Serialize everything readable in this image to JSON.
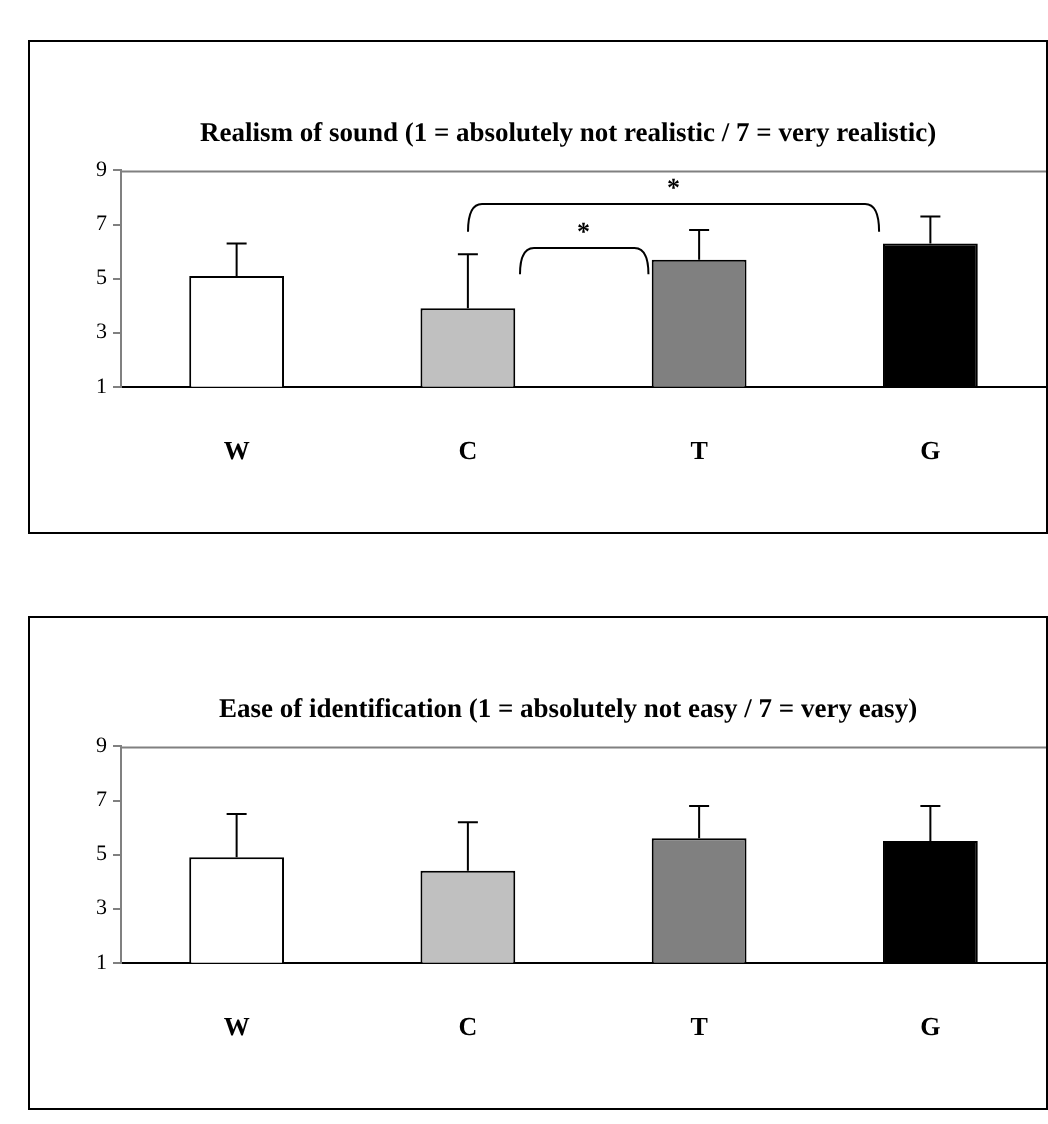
{
  "chart_data": [
    {
      "type": "bar",
      "title": "Realism of sound (1 = absolutely not realistic / 7 = very realistic)",
      "categories": [
        "W",
        "C",
        "T",
        "G"
      ],
      "values": [
        5.1,
        3.9,
        5.7,
        6.3
      ],
      "colors": [
        "#ffffff",
        "#c0c0c0",
        "#808080",
        "#000000"
      ],
      "errors": [
        [
          5.1,
          6.3
        ],
        [
          3.9,
          5.9
        ],
        [
          5.7,
          6.8
        ],
        [
          6.3,
          7.3
        ]
      ],
      "ylim": [
        1,
        9
      ],
      "yticks": [
        1,
        3,
        5,
        7,
        9
      ],
      "grid": false,
      "legend": false,
      "annotations": [
        "*",
        "*"
      ]
    },
    {
      "type": "bar",
      "title": "Ease of identification (1 = absolutely not easy / 7 = very easy)",
      "categories": [
        "W",
        "C",
        "T",
        "G"
      ],
      "values": [
        4.9,
        4.4,
        5.6,
        5.5
      ],
      "colors": [
        "#ffffff",
        "#c0c0c0",
        "#808080",
        "#000000"
      ],
      "errors": [
        [
          4.9,
          6.5
        ],
        [
          4.4,
          6.2
        ],
        [
          5.6,
          6.8
        ],
        [
          5.5,
          6.8
        ]
      ],
      "ylim": [
        1,
        9
      ],
      "yticks": [
        1,
        3,
        5,
        7,
        9
      ],
      "grid": false,
      "legend": false
    }
  ]
}
